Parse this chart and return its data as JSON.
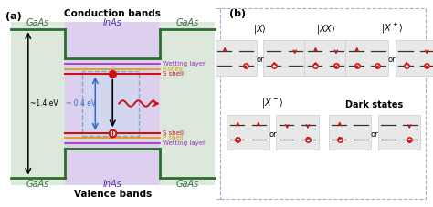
{
  "title_top": "Conduction bands",
  "title_bottom": "Valence bands",
  "label_a": "(a)",
  "label_b": "(b)",
  "gaas_label": "GaAs",
  "inas_label": "InAs",
  "ev_14": "~1.4 eV",
  "ev_04": "~ 0.4 eV",
  "wetting_label": "Wetting layer",
  "pshell_upper_label": "P-shell",
  "sshell_upper_label": "S shell",
  "sshell_lower_label": "S shell",
  "pshell_lower_label": "P shell",
  "wetting_lower_label": "Wetting layer",
  "gaas_fill": "#dce8dc",
  "inas_fill": "#ddd0ee",
  "band_color": "#2a6e2a",
  "wetting_color": "#9933bb",
  "pshell_color": "#dd9900",
  "sshell_color": "#cc1111",
  "blue_arrow_color": "#3366cc",
  "dashed_box_color": "#5588bb",
  "dashed_box_fill": "#ccddf0",
  "red_color": "#cc1111",
  "bg_outer": "#e8e8ee"
}
